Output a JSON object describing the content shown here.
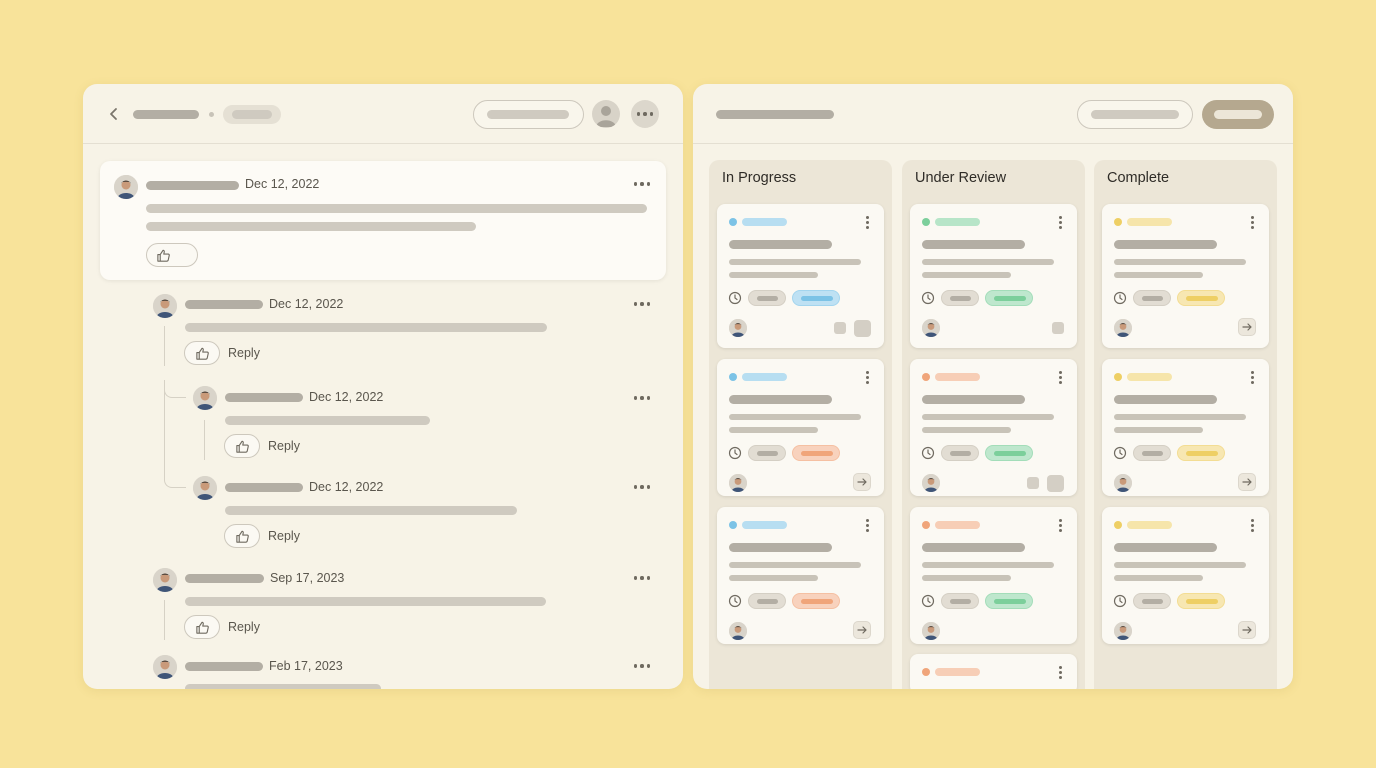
{
  "comments": [
    {
      "date": "Dec 12, 2022"
    },
    {
      "date": "Dec 12, 2022",
      "reply_label": "Reply"
    },
    {
      "date": "Dec 12, 2022",
      "reply_label": "Reply"
    },
    {
      "date": "Dec 12, 2022",
      "reply_label": "Reply"
    },
    {
      "date": "Sep 17, 2023",
      "reply_label": "Reply"
    },
    {
      "date": "Feb 17, 2023"
    }
  ],
  "board": {
    "columns": [
      {
        "title": "In Progress",
        "status_color": "#7cc3e6",
        "tag_color": "#bfe0f1"
      },
      {
        "title": "Under Review",
        "status_color": "#7ccf9b",
        "tag_color": "#c4ead1"
      },
      {
        "title": "Complete",
        "status_color": "#eecf64",
        "tag_color": "#f5e3a3"
      }
    ]
  },
  "colors": {
    "background": "#f8e39a",
    "panel": "#f7f3e7",
    "blue": "#7cc3e6",
    "green": "#7ccf9b",
    "orange": "#f0a57a",
    "yellow": "#eecf64"
  },
  "icons": [
    "back-chevron-icon",
    "user-icon",
    "more-horizontal-icon",
    "thumbs-up-icon",
    "clock-icon",
    "more-vertical-icon",
    "arrow-right-icon"
  ]
}
